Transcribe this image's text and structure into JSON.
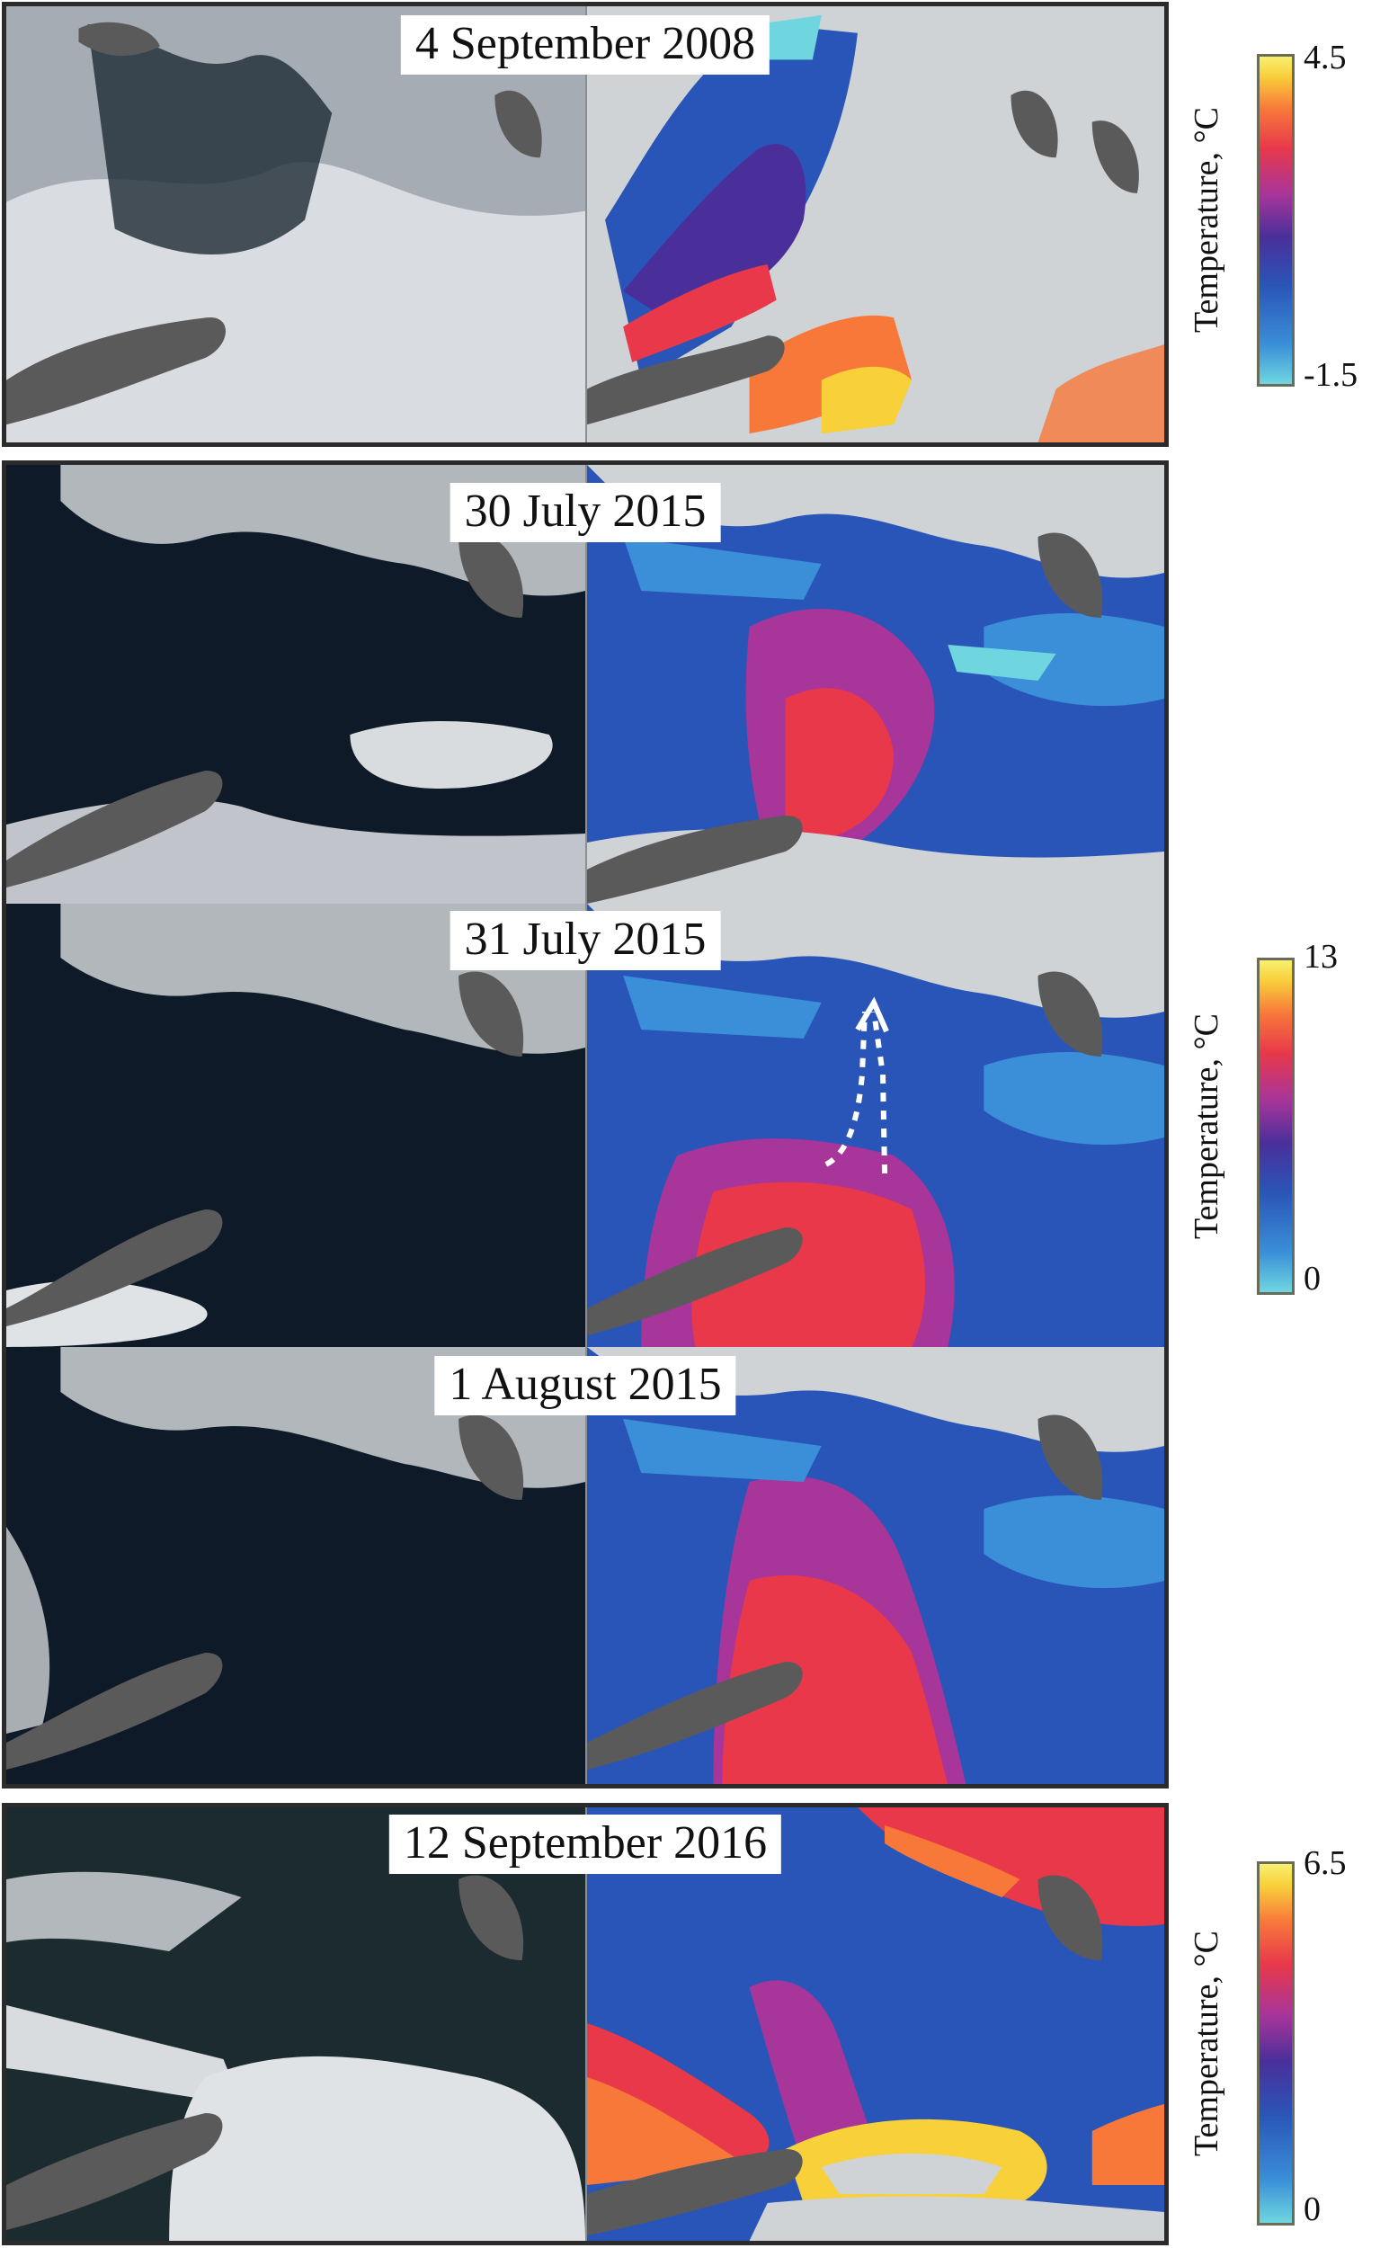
{
  "panels": {
    "p1": {
      "date": "4 September 2008"
    },
    "p2": {
      "date": "30 July 2015"
    },
    "p3": {
      "date": "31 July 2015"
    },
    "p4": {
      "date": "1 August 2015"
    },
    "p5": {
      "date": "12 September 2016"
    }
  },
  "colorbars": {
    "c1": {
      "title": "Temperature, °C",
      "max": "4.5",
      "min": "-1.5"
    },
    "c2": {
      "title": "Temperature, °C",
      "max": "13",
      "min": "0"
    },
    "c3": {
      "title": "Temperature, °C",
      "max": "6.5",
      "min": "0"
    }
  },
  "colors": {
    "land": "#5a5a5a",
    "cloud": "#d8dcdf",
    "ocean_true_color": "#0f1a28",
    "sst_cold": "#6fd6e0",
    "sst_mid": "#2a55b8",
    "sst_warm": "#e8384a",
    "sst_hot": "#f8f070"
  }
}
